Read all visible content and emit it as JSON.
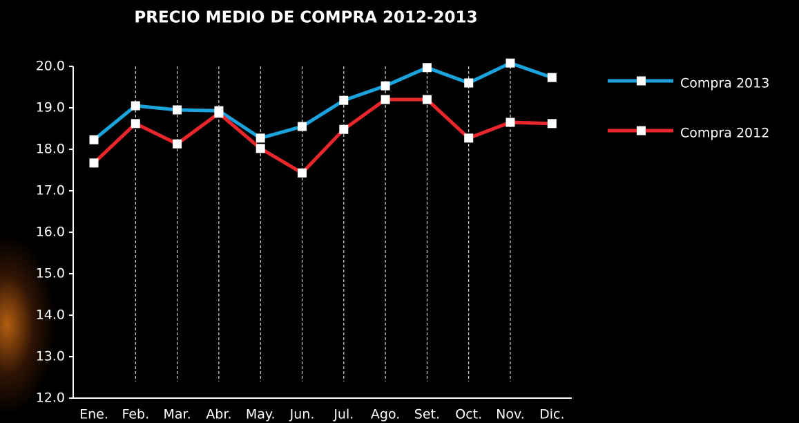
{
  "chart_data": {
    "type": "line",
    "title": "PRECIO MEDIO DE COMPRA 2012-2013",
    "categories": [
      "Ene.",
      "Feb.",
      "Mar.",
      "Abr.",
      "May.",
      "Jun.",
      "Jul.",
      "Ago.",
      "Set.",
      "Oct.",
      "Nov.",
      "Dic."
    ],
    "series": [
      {
        "name": "Compra 2013",
        "color": "#1aa3dc",
        "values": [
          18.23,
          19.05,
          18.95,
          18.93,
          18.27,
          18.55,
          19.18,
          19.53,
          19.97,
          19.6,
          20.08,
          19.73
        ]
      },
      {
        "name": "Compra 2012",
        "color": "#e8262b",
        "values": [
          17.67,
          18.62,
          18.13,
          18.87,
          18.02,
          17.43,
          18.48,
          19.2,
          19.2,
          18.27,
          18.65,
          18.62
        ]
      }
    ],
    "ylim": [
      12,
      20
    ],
    "yticks": [
      {
        "value": 12,
        "label": "12.0"
      },
      {
        "value": 13,
        "label": "13.0"
      },
      {
        "value": 14,
        "label": "14.0"
      },
      {
        "value": 15,
        "label": "15.0"
      },
      {
        "value": 16,
        "label": "16.0"
      },
      {
        "value": 17,
        "label": "17.0"
      },
      {
        "value": 18,
        "label": "18.0"
      },
      {
        "value": 19,
        "label": "19.0"
      },
      {
        "value": 20,
        "label": "20.0"
      }
    ],
    "legend": "right"
  }
}
